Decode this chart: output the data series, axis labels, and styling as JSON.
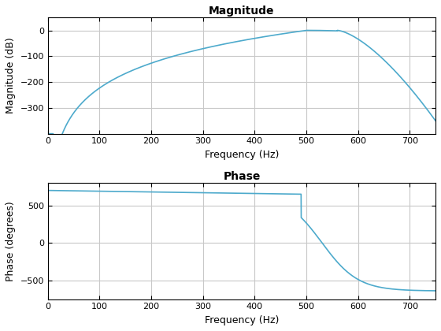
{
  "title_magnitude": "Magnitude",
  "title_phase": "Phase",
  "xlabel": "Frequency (Hz)",
  "ylabel_magnitude": "Magnitude (dB)",
  "ylabel_phase": "Phase (degrees)",
  "xlim": [
    0,
    750
  ],
  "mag_ylim": [
    -400,
    50
  ],
  "phase_ylim": [
    -750,
    800
  ],
  "mag_yticks": [
    0,
    -100,
    -200,
    -300
  ],
  "phase_yticks": [
    -500,
    0,
    500
  ],
  "xticks": [
    0,
    100,
    200,
    300,
    400,
    500,
    600,
    700
  ],
  "line_color": "#4DAACC",
  "line_width": 1.2,
  "background_color": "#ffffff",
  "grid_color": "#c8c8c8",
  "figsize": [
    5.6,
    4.2
  ],
  "dpi": 100
}
